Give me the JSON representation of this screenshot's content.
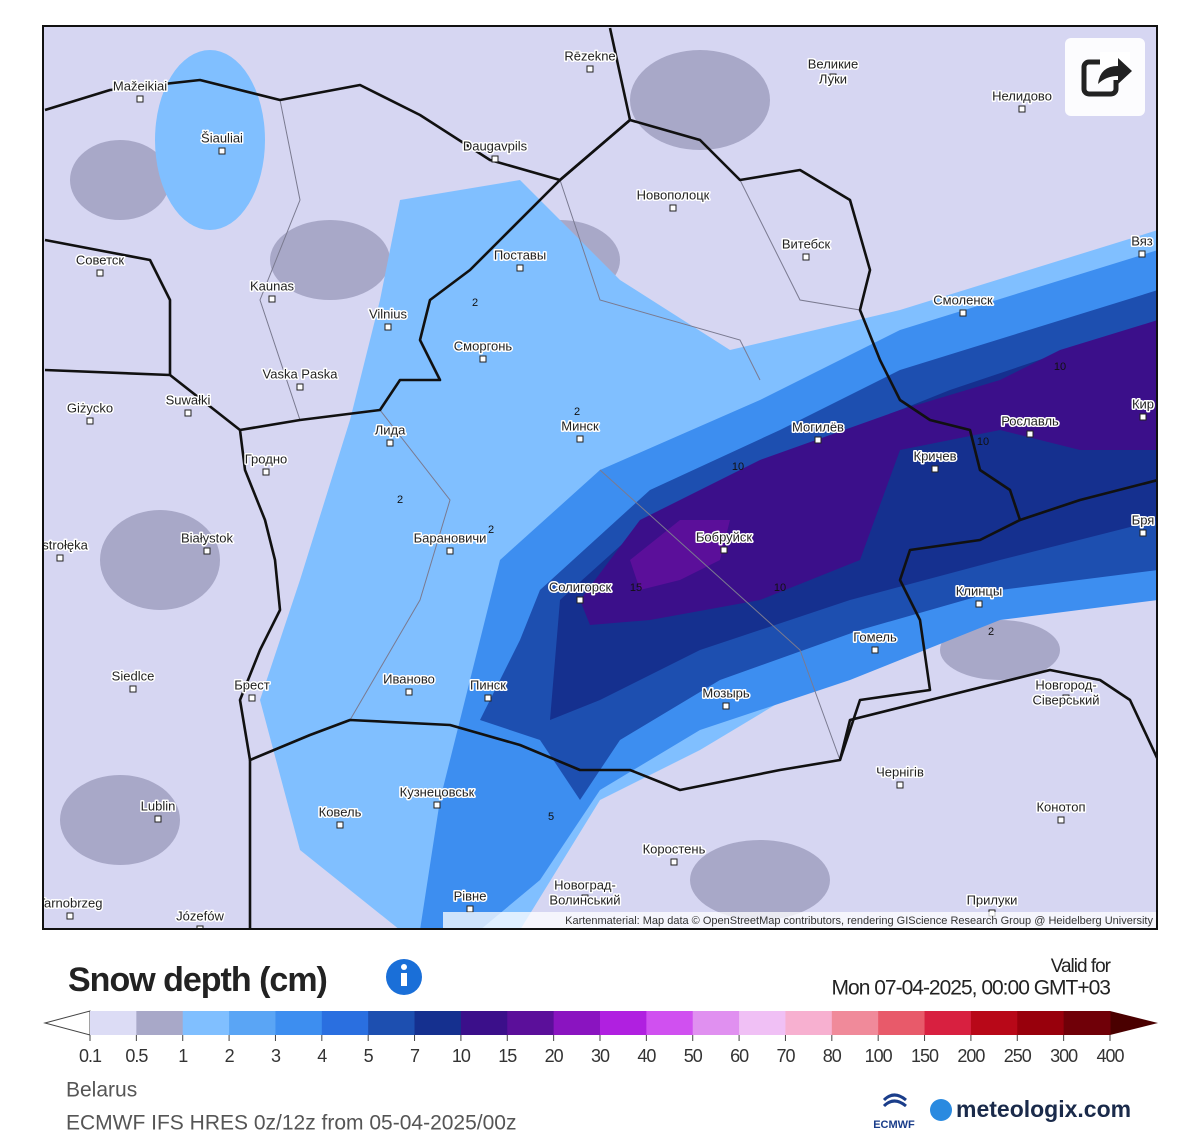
{
  "map": {
    "cities": [
      "Mažeikiai",
      "Rēzekne",
      [
        "Великие",
        "Луки"
      ],
      "Нелидово",
      "Šiauliai",
      "Daugavpils",
      "Новополоцк",
      "Советск",
      "Витебск",
      "Вяз",
      "Kaunas",
      "Поставы",
      "Vilnius",
      "Сморгонь",
      "Смоленск",
      "Vaska Paska",
      "Giżycko",
      "Suwałki",
      "Лида",
      "Минск",
      "Могилёв",
      "Рославль",
      "Кир",
      "Гродно",
      "Кричев",
      "Białystok",
      "Барановичи",
      "Бобруйск",
      "Ostrołęka",
      "Бря",
      "Солигорск",
      "Клинцы",
      "Гомель",
      "Siedlce",
      "Брест",
      "Иваново",
      "Пинск",
      "Мозырь",
      [
        "Новгород-",
        "Сіверський"
      ],
      "Lublin",
      "Чернігів",
      "Кузнецовськ",
      "Ковель",
      "Конотоп",
      "Коростень",
      "Рівне",
      [
        "Новоград-",
        "Волинський"
      ],
      "Tarnobrzeg",
      "Józefów",
      "Прилуки"
    ],
    "contour_labels": [
      2,
      2,
      2,
      2,
      2,
      10,
      10,
      10,
      10,
      15,
      5
    ],
    "attribution": "Kartenmaterial: Map data © OpenStreetMap contributors, rendering GIScience Research Group @ Heidelberg University"
  },
  "header": {
    "title": "Snow depth (cm)",
    "valid_for": "Valid for",
    "valid_time": "Mon 07-04-2025, 00:00 GMT+03"
  },
  "legend": {
    "ticks": [
      0.1,
      0.5,
      1,
      2,
      3,
      4,
      5,
      7,
      10,
      15,
      20,
      30,
      40,
      50,
      60,
      70,
      80,
      100,
      150,
      200,
      250,
      300,
      400
    ],
    "colors": [
      "#dcdcf5",
      "#a8a8c8",
      "#80bfff",
      "#5aa5f5",
      "#3d8ef0",
      "#2a6fe0",
      "#1d4fb0",
      "#15308f",
      "#3b0f8a",
      "#5b0f9a",
      "#8a14c0",
      "#b020e0",
      "#d050f0",
      "#e090f0",
      "#f0c0f5",
      "#f7b0d0",
      "#f08a9a",
      "#e85a6a",
      "#d82040",
      "#b80818",
      "#98000c",
      "#700008"
    ],
    "below_color": "#ffffff",
    "above_color": "#4a0000"
  },
  "footer": {
    "region": "Belarus",
    "model": "ECMWF IFS HRES 0z/12z from 05-04-2025/00z",
    "logo_ecmwf": "ECMWF",
    "logo_meteologix": "meteologix.com"
  }
}
